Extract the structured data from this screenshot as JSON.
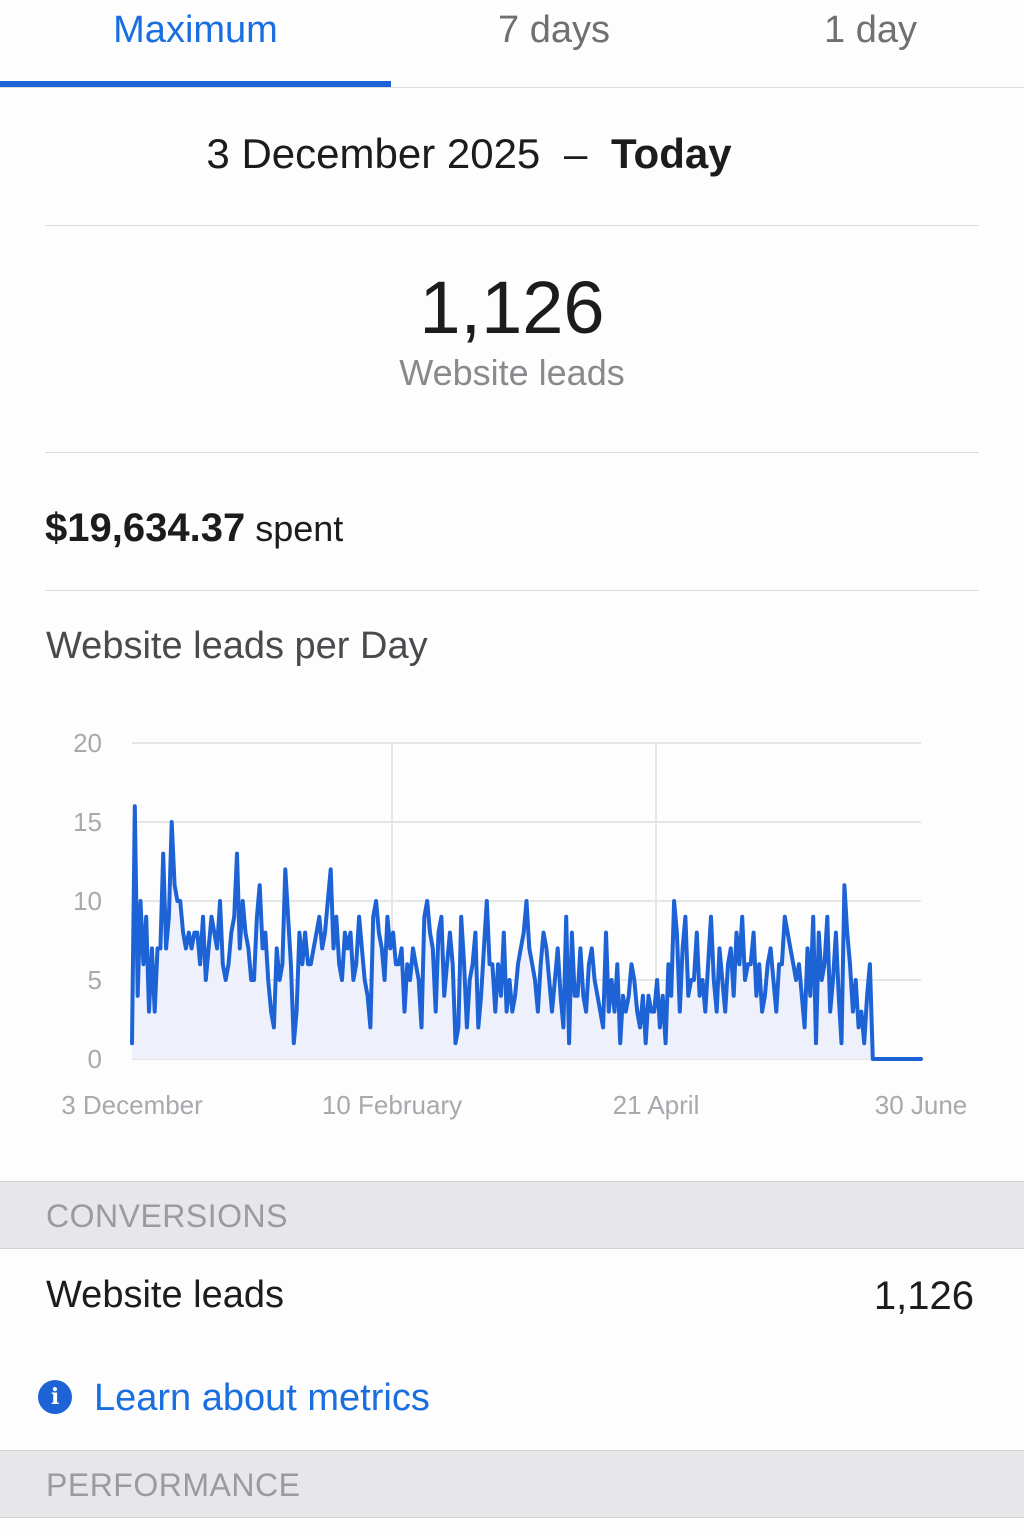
{
  "tabs": [
    {
      "label": "Maximum",
      "active": true
    },
    {
      "label": "7 days",
      "active": false
    },
    {
      "label": "1 day",
      "active": false
    }
  ],
  "date_range": {
    "start": "3 December 2025",
    "separator": "–",
    "end": "Today"
  },
  "summary": {
    "value": "1,126",
    "label": "Website leads"
  },
  "spend": {
    "amount": "$19,634.37",
    "suffix": "spent"
  },
  "chart_title": "Website leads per Day",
  "colors": {
    "accent": "#1d63d6",
    "fill": "#eef1fb",
    "grid": "#e6e6e6"
  },
  "chart_data": {
    "type": "line",
    "title": "Website leads per Day",
    "xlabel": "",
    "ylabel": "",
    "ylim": [
      0,
      20
    ],
    "yticks": [
      0,
      5,
      10,
      15,
      20
    ],
    "xtick_labels": [
      "3 December",
      "10 February",
      "21 April",
      "30 June"
    ],
    "grid": true,
    "series": [
      {
        "values": [
          1,
          16,
          4,
          10,
          6,
          9,
          3,
          7,
          3,
          7,
          7,
          13,
          7,
          9,
          15,
          11,
          10,
          10,
          8,
          7,
          8,
          7,
          8,
          8,
          6,
          9,
          5,
          7,
          9,
          8,
          7,
          10,
          6,
          5,
          6,
          8,
          9,
          13,
          7,
          10,
          8,
          7,
          5,
          5,
          9,
          11,
          7,
          8,
          5,
          3,
          2,
          7,
          5,
          6,
          12,
          9,
          6,
          1,
          3,
          8,
          6,
          8,
          6,
          6,
          7,
          8,
          9,
          7,
          8,
          10,
          12,
          7,
          9,
          6,
          5,
          8,
          7,
          8,
          5,
          6,
          9,
          7,
          5,
          4,
          2,
          9,
          10,
          8,
          7,
          5,
          9,
          7,
          8,
          6,
          6,
          7,
          3,
          6,
          5,
          7,
          6,
          5,
          2,
          9,
          10,
          8,
          7,
          3,
          8,
          9,
          4,
          6,
          8,
          6,
          1,
          2,
          9,
          6,
          2,
          5,
          6,
          8,
          2,
          4,
          7,
          10,
          6,
          6,
          3,
          6,
          4,
          8,
          3,
          5,
          3,
          4,
          6,
          7,
          8,
          10,
          7,
          6,
          5,
          3,
          6,
          8,
          7,
          5,
          3,
          5,
          7,
          4,
          2,
          9,
          1,
          8,
          4,
          4,
          7,
          4,
          3,
          6,
          7,
          5,
          4,
          3,
          2,
          8,
          3,
          5,
          3,
          6,
          1,
          4,
          3,
          4,
          6,
          5,
          3,
          2,
          4,
          1,
          4,
          3,
          3,
          5,
          2,
          4,
          1,
          6,
          4,
          10,
          8,
          3,
          7,
          9,
          4,
          5,
          5,
          8,
          4,
          5,
          3,
          6,
          9,
          5,
          3,
          7,
          5,
          3,
          6,
          7,
          4,
          8,
          6,
          9,
          5,
          6,
          6,
          8,
          4,
          6,
          3,
          4,
          6,
          7,
          5,
          3,
          6,
          6,
          9,
          8,
          7,
          6,
          5,
          6,
          4,
          2,
          7,
          4,
          9,
          1,
          8,
          5,
          6,
          9,
          3,
          5,
          8,
          4,
          1,
          11,
          8,
          6,
          3,
          5,
          2,
          3,
          1,
          4,
          6,
          0,
          0,
          0,
          0,
          0,
          0,
          0,
          0,
          0,
          0,
          0,
          0,
          0,
          0,
          0,
          0,
          0,
          0
        ]
      }
    ]
  },
  "conversions_header": "CONVERSIONS",
  "conversions": {
    "label": "Website leads",
    "value": "1,126"
  },
  "learn_link": {
    "icon": "info-icon",
    "text": "Learn about metrics"
  },
  "performance_header": "PERFORMANCE"
}
